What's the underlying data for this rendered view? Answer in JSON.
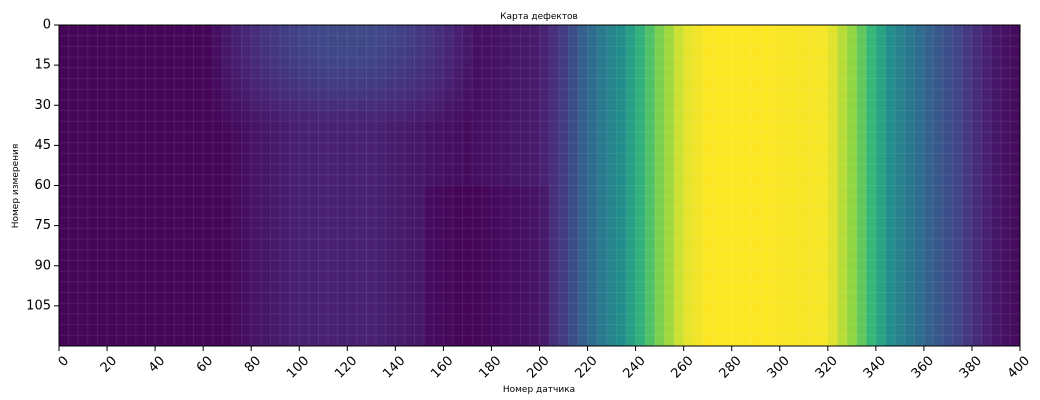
{
  "chart_data": {
    "type": "heatmap",
    "title": "Карта дефектов",
    "xlabel": "Номер датчика",
    "ylabel": "Номер измерения",
    "xlim": [
      0,
      400
    ],
    "ylim": [
      120,
      0
    ],
    "xticks": [
      "0",
      "20",
      "40",
      "60",
      "80",
      "100",
      "120",
      "140",
      "160",
      "180",
      "200",
      "220",
      "240",
      "260",
      "280",
      "300",
      "320",
      "340",
      "360",
      "380",
      "400"
    ],
    "yticks": [
      "0",
      "15",
      "30",
      "45",
      "60",
      "75",
      "90",
      "105"
    ],
    "colormap": "viridis",
    "grid": true,
    "value_range": [
      0,
      1
    ],
    "column_profile": {
      "x": [
        0,
        70,
        80,
        100,
        130,
        150,
        170,
        200,
        210,
        220,
        230,
        240,
        250,
        260,
        270,
        290,
        320,
        330,
        340,
        350,
        360,
        370,
        380,
        390,
        400
      ],
      "values": [
        0.02,
        0.02,
        0.06,
        0.12,
        0.12,
        0.08,
        0.04,
        0.1,
        0.22,
        0.42,
        0.56,
        0.7,
        0.85,
        0.97,
        1.0,
        1.0,
        0.99,
        0.88,
        0.72,
        0.55,
        0.42,
        0.3,
        0.18,
        0.08,
        0.03
      ]
    },
    "bright_region": {
      "x_range": [
        90,
        150
      ],
      "y_range": [
        0,
        40
      ],
      "peak_value": 0.28
    }
  }
}
